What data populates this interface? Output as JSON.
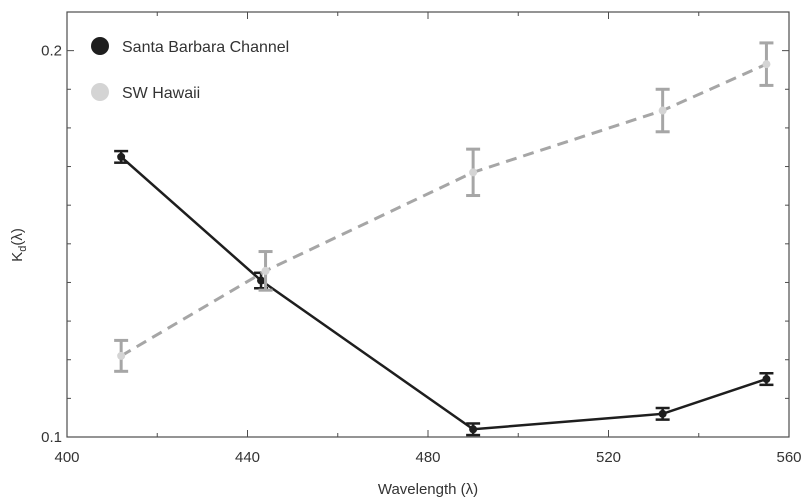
{
  "chart_data": {
    "type": "line",
    "title": "",
    "xlabel": "Wavelength (λ)",
    "ylabel_main": "K",
    "ylabel_sub": "d",
    "ylabel_tail": "(λ)",
    "xlim": [
      400,
      560
    ],
    "ylim": [
      0.1,
      0.21
    ],
    "xticks": [
      400,
      440,
      480,
      520,
      560
    ],
    "xtick_labels": [
      "400",
      "440",
      "480",
      "520",
      "560"
    ],
    "yticks": [
      0.1,
      0.2
    ],
    "ytick_labels": [
      "0.1",
      "0.2"
    ],
    "grid": false,
    "legend_placement": "top-left",
    "series": [
      {
        "name": "Santa Barbara Channel",
        "color": "#1e1e1e",
        "line_style": "solid",
        "x": [
          412,
          443,
          490,
          532,
          555
        ],
        "y": [
          0.1725,
          0.1405,
          0.102,
          0.106,
          0.115
        ],
        "err": [
          0.0015,
          0.002,
          0.0015,
          0.0015,
          0.0015
        ]
      },
      {
        "name": "SW Hawaii",
        "color": "#a6a6a6",
        "marker_color": "#d4d4d4",
        "line_style": "dashed",
        "x": [
          412,
          444,
          490,
          532,
          555
        ],
        "y": [
          0.121,
          0.143,
          0.1685,
          0.1845,
          0.1965
        ],
        "err": [
          0.004,
          0.005,
          0.006,
          0.0055,
          0.0055
        ]
      }
    ]
  }
}
